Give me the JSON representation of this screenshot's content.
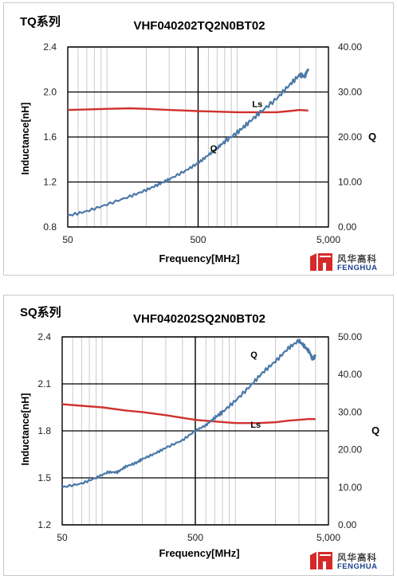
{
  "panels": [
    {
      "tag": "TQ系列",
      "logo": {
        "cn": "风华高科",
        "en": "FENGHUA"
      },
      "ls_label": "Ls",
      "q_label": "Q"
    },
    {
      "tag": "SQ系列",
      "logo": {
        "cn": "风华高科",
        "en": "FENGHUA"
      },
      "ls_label": "Ls",
      "q_label": "Q"
    }
  ],
  "chart_data": [
    {
      "type": "line",
      "title": "VHF040202TQ2N0BT02",
      "xlabel": "Frequency[MHz]",
      "ylabel": "Inductance[nH]",
      "y2label": "Q",
      "xscale": "log",
      "xlim": [
        50,
        5000
      ],
      "xticks": [
        "50",
        "500",
        "5,000"
      ],
      "ylim": [
        0.8,
        2.4
      ],
      "yticks": [
        "0.8",
        "1.2",
        "1.6",
        "2.0",
        "2.4"
      ],
      "y2lim": [
        0,
        40
      ],
      "y2ticks": [
        "0.00",
        "10.00",
        "20.00",
        "30.00",
        "40.00"
      ],
      "grid": true,
      "series": [
        {
          "name": "Ls",
          "axis": "left",
          "color": "#d0312d",
          "x": [
            50,
            70,
            100,
            150,
            200,
            300,
            400,
            500,
            700,
            1000,
            1500,
            2000,
            2500,
            3000,
            3500
          ],
          "y": [
            1.84,
            1.845,
            1.85,
            1.855,
            1.85,
            1.84,
            1.835,
            1.83,
            1.825,
            1.82,
            1.82,
            1.82,
            1.83,
            1.84,
            1.835
          ]
        },
        {
          "name": "Q",
          "axis": "right",
          "color": "#4a78a8",
          "x": [
            50,
            70,
            100,
            150,
            200,
            250,
            300,
            400,
            500,
            600,
            700,
            800,
            1000,
            1200,
            1500,
            2000,
            2500,
            3000,
            3300,
            3500
          ],
          "y": [
            2.5,
            3.5,
            5.0,
            6.8,
            8.2,
            9.5,
            10.6,
            12.5,
            14.2,
            16.0,
            17.5,
            19.0,
            21.0,
            23.0,
            25.5,
            28.5,
            31.5,
            33.8,
            33.5,
            35.2
          ]
        }
      ]
    },
    {
      "type": "line",
      "title": "VHF040202SQ2N0BT02",
      "xlabel": "Frequency[MHz]",
      "ylabel": "Inductance[nH]",
      "y2label": "Q",
      "xscale": "log",
      "xlim": [
        50,
        5000
      ],
      "xticks": [
        "50",
        "500",
        "5,000"
      ],
      "ylim": [
        1.2,
        2.4
      ],
      "yticks": [
        "1.2",
        "1.5",
        "1.8",
        "2.1",
        "2.4"
      ],
      "y2lim": [
        0,
        50
      ],
      "y2ticks": [
        "0.00",
        "10.00",
        "20.00",
        "30.00",
        "40.00",
        "50.00"
      ],
      "grid": true,
      "series": [
        {
          "name": "Ls",
          "axis": "left",
          "color": "#d0312d",
          "x": [
            50,
            70,
            100,
            150,
            200,
            300,
            500,
            700,
            1000,
            1500,
            2000,
            2500,
            3000,
            3500,
            4000
          ],
          "y": [
            1.97,
            1.96,
            1.95,
            1.93,
            1.92,
            1.9,
            1.87,
            1.86,
            1.85,
            1.85,
            1.855,
            1.865,
            1.87,
            1.875,
            1.875
          ]
        },
        {
          "name": "Q",
          "axis": "right",
          "color": "#4a78a8",
          "x": [
            50,
            70,
            90,
            110,
            130,
            150,
            180,
            200,
            250,
            300,
            400,
            500,
            600,
            700,
            800,
            1000,
            1300,
            1600,
            2000,
            2500,
            3000,
            3300,
            3600,
            3800,
            4000
          ],
          "y": [
            10.0,
            11.0,
            12.5,
            14.0,
            14.0,
            15.5,
            16.5,
            17.5,
            19.0,
            20.5,
            22.5,
            25.0,
            26.5,
            28.5,
            30.0,
            33.0,
            37.0,
            40.5,
            43.5,
            47.0,
            49.0,
            47.5,
            46.0,
            44.0,
            45.0
          ]
        }
      ]
    }
  ]
}
